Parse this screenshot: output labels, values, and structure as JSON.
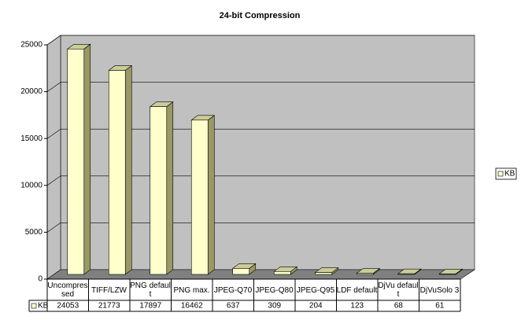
{
  "chart_data": {
    "type": "bar",
    "title": "24-bit Compression",
    "categories": [
      "Uncompressed",
      "TIFF/LZW",
      "PNG default",
      "PNG max.",
      "JPEG-Q70",
      "JPEG-Q80",
      "JPEG-Q95",
      "LDF default",
      "DjVu default",
      "DjVuSolo 3"
    ],
    "series": [
      {
        "name": "KB",
        "color": "#ffffcc",
        "values": [
          24053,
          21773,
          17897,
          16462,
          637,
          309,
          204,
          123,
          68,
          61
        ]
      }
    ],
    "ylim": [
      0,
      25000
    ],
    "yticks": [
      0,
      5000,
      10000,
      15000,
      20000,
      25000
    ],
    "grid": true,
    "legend": "right"
  }
}
